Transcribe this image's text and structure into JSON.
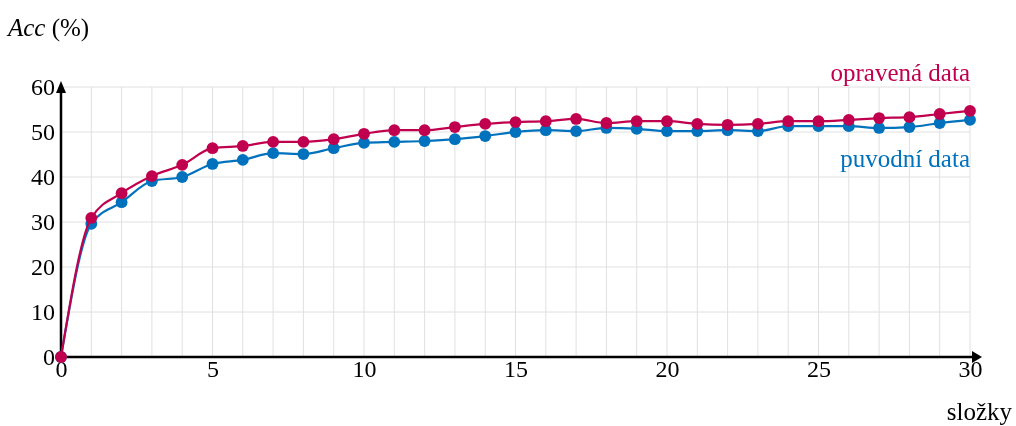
{
  "chart_data": {
    "type": "line",
    "ylabel": "Acc (%)",
    "xlabel": "složky",
    "x": [
      0,
      1,
      2,
      3,
      4,
      5,
      6,
      7,
      8,
      9,
      10,
      11,
      12,
      13,
      14,
      15,
      16,
      17,
      18,
      19,
      20,
      21,
      22,
      23,
      24,
      25,
      26,
      27,
      28,
      29,
      30
    ],
    "series": [
      {
        "name": "puvodní data",
        "color": "#0072bd",
        "values": [
          0,
          29.6,
          34.4,
          39.1,
          40.0,
          42.9,
          43.8,
          45.3,
          45.1,
          46.4,
          47.6,
          47.8,
          48.0,
          48.4,
          49.1,
          50.0,
          50.4,
          50.2,
          50.9,
          50.7,
          50.2,
          50.2,
          50.4,
          50.2,
          51.3,
          51.3,
          51.3,
          50.9,
          51.1,
          52.0,
          52.7
        ]
      },
      {
        "name": "opravená data",
        "color": "#c0004e",
        "values": [
          0,
          30.9,
          36.4,
          40.2,
          42.7,
          46.4,
          46.9,
          47.8,
          47.8,
          48.4,
          49.6,
          50.4,
          50.4,
          51.1,
          51.8,
          52.2,
          52.4,
          52.9,
          52.0,
          52.4,
          52.4,
          51.8,
          51.6,
          51.8,
          52.4,
          52.4,
          52.7,
          53.1,
          53.3,
          54.0,
          54.7
        ]
      }
    ],
    "xlim": [
      0,
      30
    ],
    "ylim": [
      0,
      60
    ],
    "xticks": [
      0,
      {
        "value": 1,
        "label": null
      },
      {
        "value": 2,
        "label": null
      },
      {
        "value": 3,
        "label": null
      },
      {
        "value": 4,
        "label": null
      },
      5,
      {
        "value": 6,
        "label": null
      },
      {
        "value": 7,
        "label": null
      },
      {
        "value": 8,
        "label": null
      },
      {
        "value": 9,
        "label": null
      },
      10,
      {
        "value": 11,
        "label": null
      },
      {
        "value": 12,
        "label": null
      },
      {
        "value": 13,
        "label": null
      },
      {
        "value": 14,
        "label": null
      },
      15,
      {
        "value": 16,
        "label": null
      },
      {
        "value": 17,
        "label": null
      },
      {
        "value": 18,
        "label": null
      },
      {
        "value": 19,
        "label": null
      },
      20,
      {
        "value": 21,
        "label": null
      },
      {
        "value": 22,
        "label": null
      },
      {
        "value": 23,
        "label": null
      },
      {
        "value": 24,
        "label": null
      },
      25,
      {
        "value": 26,
        "label": null
      },
      {
        "value": 27,
        "label": null
      },
      {
        "value": 28,
        "label": null
      },
      {
        "value": 29,
        "label": null
      },
      30
    ],
    "yticks": [
      0,
      10,
      20,
      30,
      40,
      50,
      60
    ],
    "grid": true,
    "marker": "circle",
    "line_style": "solid",
    "legend": "right"
  }
}
